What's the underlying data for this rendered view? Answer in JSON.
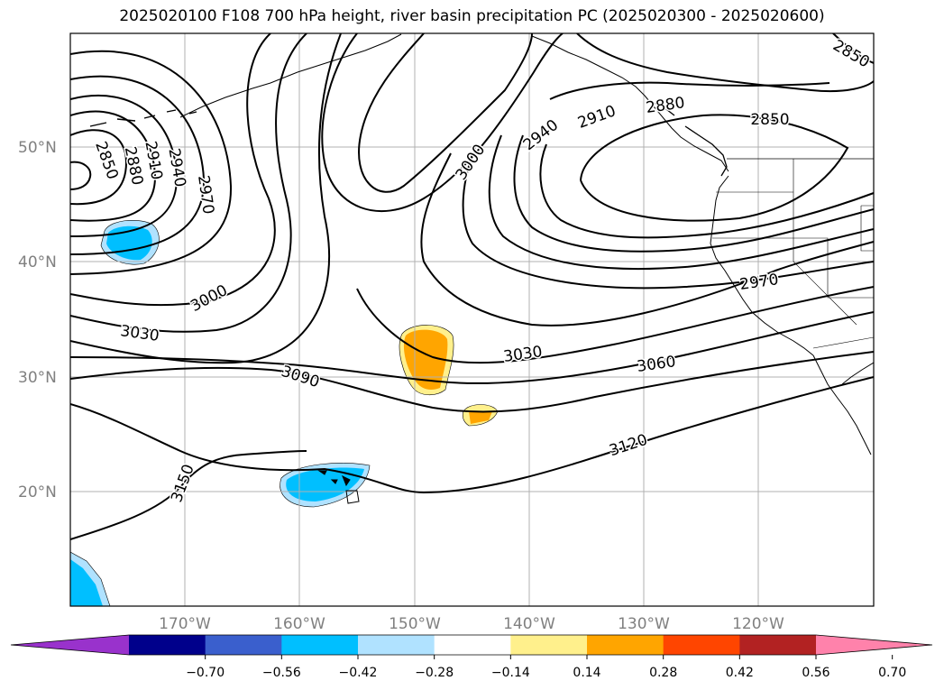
{
  "title": "2025020100 F108 700 hPa height, river basin precipitation PC (2025020300 - 2025020600)",
  "lat_labels": [
    "50°N",
    "40°N",
    "30°N",
    "20°N"
  ],
  "lon_labels": [
    "170°W",
    "160°W",
    "150°W",
    "140°W",
    "130°W",
    "120°W"
  ],
  "contour_labels": [
    "2850",
    "2880",
    "2910",
    "2940",
    "2970",
    "3000",
    "3030",
    "3090",
    "3150",
    "3000",
    "2940",
    "2910",
    "2880",
    "2850",
    "2850",
    "2970",
    "3030",
    "3060",
    "3120"
  ],
  "colorbar": {
    "ticks": [
      "−0.70",
      "−0.56",
      "−0.42",
      "−0.28",
      "−0.14",
      "0.14",
      "0.28",
      "0.42",
      "0.56",
      "0.70"
    ],
    "colors": [
      "#9932cc",
      "#00008b",
      "#3a5fcd",
      "#00bfff",
      "#b0e2ff",
      "#ffffff",
      "#fff08c",
      "#ffa500",
      "#ff4500",
      "#b22222",
      "#ff82ab"
    ]
  },
  "shading": {
    "negative_color": "#00bfff",
    "negative_light": "#b0e2ff",
    "positive_color": "#ffa500",
    "positive_light": "#fff08c"
  }
}
